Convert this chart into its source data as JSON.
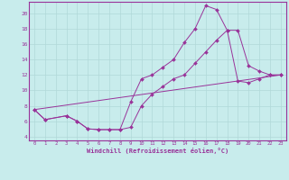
{
  "xlabel": "Windchill (Refroidissement éolien,°C)",
  "xlim": [
    -0.5,
    23.5
  ],
  "ylim": [
    3.5,
    21.5
  ],
  "yticks": [
    4,
    6,
    8,
    10,
    12,
    14,
    16,
    18,
    20
  ],
  "xticks": [
    0,
    1,
    2,
    3,
    4,
    5,
    6,
    7,
    8,
    9,
    10,
    11,
    12,
    13,
    14,
    15,
    16,
    17,
    18,
    19,
    20,
    21,
    22,
    23
  ],
  "bg_color": "#c8ecec",
  "grid_color": "#aadddd",
  "line_color": "#993399",
  "line1_x": [
    0,
    1,
    3,
    4,
    5,
    6,
    7,
    8,
    9,
    10,
    11,
    12,
    13,
    14,
    15,
    16,
    17,
    18,
    19,
    20,
    21,
    22,
    23
  ],
  "line1_y": [
    7.5,
    6.2,
    6.7,
    6.0,
    5.0,
    4.9,
    4.9,
    4.9,
    8.5,
    11.5,
    12.0,
    13.0,
    14.0,
    16.2,
    18.0,
    21.0,
    20.5,
    17.8,
    17.8,
    13.2,
    12.5,
    12.0,
    12.0
  ],
  "line2_x": [
    0,
    1,
    3,
    4,
    5,
    6,
    7,
    8,
    9,
    10,
    11,
    12,
    13,
    14,
    15,
    16,
    17,
    18,
    19,
    20,
    21,
    22,
    23
  ],
  "line2_y": [
    7.5,
    6.2,
    6.7,
    6.0,
    5.0,
    4.9,
    4.9,
    4.9,
    5.2,
    8.0,
    9.5,
    10.5,
    11.5,
    12.0,
    13.5,
    15.0,
    16.5,
    17.8,
    11.2,
    11.0,
    11.5,
    12.0,
    12.0
  ],
  "line3_x": [
    0,
    23
  ],
  "line3_y": [
    7.5,
    12.0
  ]
}
